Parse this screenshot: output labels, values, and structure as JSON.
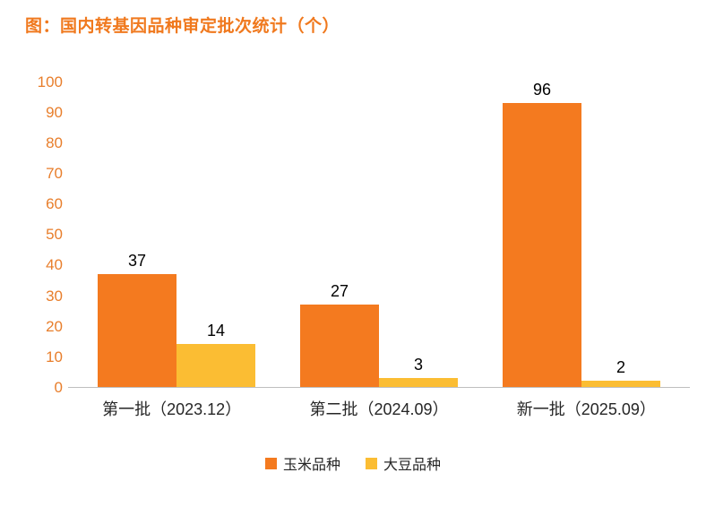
{
  "title": "图：国内转基因品种审定批次统计（个）",
  "colors": {
    "title": "#f0791e",
    "axis_tick_label": "#e87e2b",
    "axis_line": "#bfbfbf",
    "value_label": "#000000",
    "series_corn": "#f47a1f",
    "series_soy": "#fbbd33"
  },
  "chart_data": {
    "type": "bar",
    "title": "图：国内转基因品种审定批次统计（个）",
    "categories": [
      "第一批（2023.12）",
      "第二批（2024.09）",
      "新一批（2025.09）"
    ],
    "series": [
      {
        "name": "玉米品种",
        "color": "#f47a1f",
        "values": [
          37,
          27,
          96
        ]
      },
      {
        "name": "大豆品种",
        "color": "#fbbd33",
        "values": [
          14,
          3,
          2
        ]
      }
    ],
    "xlabel": "",
    "ylabel": "",
    "ylim": [
      0,
      100
    ],
    "yticks": [
      0,
      10,
      20,
      30,
      40,
      50,
      60,
      70,
      80,
      90,
      100
    ],
    "grid": false,
    "legend_position": "bottom"
  }
}
